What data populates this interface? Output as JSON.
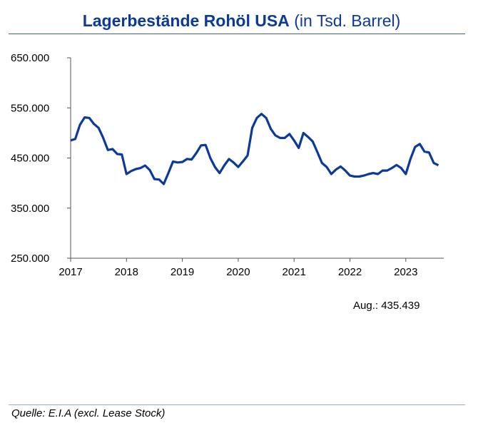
{
  "chart_data": {
    "type": "line",
    "title": "Lagerbestände Rohöl USA",
    "subtitle": "(in Tsd. Barrel)",
    "xlabel": "",
    "ylabel": "",
    "ylim": [
      250000,
      650000
    ],
    "yticks": [
      "650.000",
      "550.000",
      "450.000",
      "350.000",
      "250.000"
    ],
    "ytick_values": [
      650000,
      550000,
      450000,
      350000,
      250000
    ],
    "xticks": [
      "2017",
      "2018",
      "2019",
      "2020",
      "2021",
      "2022",
      "2023"
    ],
    "x_start": "2017-01",
    "x_end": "2023-08",
    "grid": false,
    "series": [
      {
        "color": "#0b3a9a",
        "frequency": "monthly",
        "values": [
          485000,
          488000,
          516000,
          531000,
          530000,
          518000,
          510000,
          490000,
          466000,
          468000,
          458000,
          457000,
          418000,
          424000,
          428000,
          430000,
          435000,
          426000,
          408000,
          407000,
          398000,
          420000,
          443000,
          441000,
          442000,
          448000,
          447000,
          460000,
          475000,
          476000,
          450000,
          432000,
          420000,
          435000,
          448000,
          441000,
          432000,
          443000,
          455000,
          510000,
          530000,
          538000,
          530000,
          508000,
          495000,
          490000,
          490000,
          498000,
          485000,
          470000,
          500000,
          492000,
          483000,
          462000,
          440000,
          432000,
          418000,
          427000,
          433000,
          425000,
          415000,
          413000,
          413000,
          415000,
          418000,
          420000,
          418000,
          425000,
          425000,
          430000,
          436000,
          430000,
          418000,
          448000,
          472000,
          478000,
          463000,
          461000,
          440000,
          435439
        ]
      }
    ],
    "annotation": "Aug.: 435.439"
  },
  "source": "Quelle: E.I.A (excl. Lease Stock)"
}
